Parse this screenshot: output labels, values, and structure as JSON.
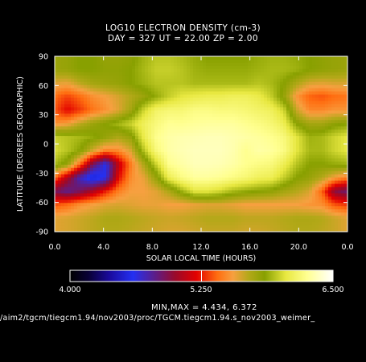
{
  "chart_data": {
    "type": "heatmap",
    "title": "LOG10 ELECTRON DENSITY (cm-3)",
    "subtitle": "DAY = 327  UT = 22.00  ZP =    2.00",
    "xlabel": "SOLAR LOCAL TIME (HOURS)",
    "ylabel": "LATITUDE (DEGREES GEOGRAPHIC)",
    "x_ticks": [
      "0.0",
      "4.0",
      "8.0",
      "12.0",
      "16.0",
      "20.0",
      "0.0"
    ],
    "y_ticks": [
      "90",
      "60",
      "30",
      "0",
      "-30",
      "-60",
      "-90"
    ],
    "xlim": [
      0,
      24
    ],
    "ylim": [
      -90,
      90
    ],
    "colorbar": {
      "min_label": "4.000",
      "mid_label": "5.250",
      "max_label": "6.500",
      "range": [
        4.0,
        6.5
      ]
    },
    "minmax_text": "MIN,MAX =       4.434,     6.372",
    "source_path": "/aim2/tgcm/tiegcm1.94/nov2003/proc/TGCM.tiegcm1.94.s_nov2003_weimer_",
    "grid": [
      [
        5.78,
        5.8,
        5.85,
        5.85,
        5.8,
        5.8,
        5.82,
        5.9,
        5.95,
        5.95,
        5.92,
        5.88,
        5.85,
        5.85,
        5.85,
        5.85,
        5.88,
        5.9,
        5.9,
        5.88,
        5.85,
        5.82,
        5.8,
        5.78
      ],
      [
        5.78,
        5.8,
        5.85,
        5.85,
        5.82,
        5.82,
        5.85,
        5.92,
        5.98,
        5.98,
        5.95,
        5.9,
        5.88,
        5.88,
        5.88,
        5.88,
        5.9,
        5.92,
        5.92,
        5.9,
        5.85,
        5.82,
        5.8,
        5.78
      ],
      [
        5.6,
        5.58,
        5.68,
        5.75,
        5.78,
        5.8,
        5.85,
        5.9,
        5.95,
        5.95,
        5.95,
        5.92,
        5.92,
        5.92,
        5.92,
        5.92,
        5.95,
        5.92,
        5.85,
        5.72,
        5.62,
        5.6,
        5.62,
        5.62
      ],
      [
        5.4,
        5.32,
        5.4,
        5.5,
        5.55,
        5.62,
        5.7,
        5.78,
        5.88,
        5.98,
        6.05,
        6.08,
        6.1,
        6.1,
        6.12,
        6.12,
        6.08,
        5.98,
        5.8,
        5.52,
        5.38,
        5.35,
        5.4,
        5.42
      ],
      [
        5.35,
        5.2,
        5.3,
        5.42,
        5.5,
        5.6,
        5.75,
        6.0,
        6.15,
        6.18,
        6.18,
        6.22,
        6.22,
        6.2,
        6.2,
        6.18,
        6.15,
        6.12,
        6.0,
        5.65,
        5.48,
        5.48,
        5.52,
        5.52
      ],
      [
        5.5,
        5.55,
        5.68,
        5.78,
        5.85,
        5.92,
        6.0,
        6.12,
        6.2,
        6.26,
        6.25,
        6.27,
        6.28,
        6.28,
        6.28,
        6.25,
        6.22,
        6.18,
        6.1,
        5.85,
        5.75,
        5.75,
        5.82,
        5.85
      ],
      [
        5.98,
        5.95,
        5.92,
        5.88,
        5.8,
        5.72,
        5.8,
        6.08,
        6.25,
        6.3,
        6.32,
        6.33,
        6.34,
        6.34,
        6.32,
        6.3,
        6.28,
        6.25,
        6.2,
        6.05,
        5.9,
        5.92,
        6.0,
        6.05
      ],
      [
        6.02,
        5.95,
        5.85,
        5.62,
        5.45,
        5.48,
        5.62,
        5.95,
        6.2,
        6.3,
        6.33,
        6.35,
        6.35,
        6.35,
        6.32,
        6.25,
        6.3,
        6.28,
        6.22,
        6.05,
        5.92,
        5.92,
        6.0,
        6.05
      ],
      [
        5.92,
        5.8,
        5.4,
        4.9,
        4.6,
        5.1,
        5.45,
        5.72,
        6.0,
        6.25,
        6.3,
        6.34,
        6.34,
        6.33,
        6.3,
        6.25,
        6.22,
        6.2,
        6.1,
        5.95,
        5.85,
        5.85,
        5.88,
        5.9
      ],
      [
        5.4,
        5.05,
        4.7,
        4.5,
        4.62,
        5.2,
        5.5,
        5.58,
        5.8,
        6.1,
        6.22,
        6.28,
        6.28,
        6.26,
        6.22,
        6.18,
        6.12,
        6.1,
        5.98,
        5.85,
        5.8,
        5.7,
        5.55,
        5.45
      ],
      [
        4.9,
        4.8,
        4.9,
        5.05,
        5.25,
        5.45,
        5.55,
        5.55,
        5.6,
        5.72,
        5.9,
        6.05,
        6.05,
        6.0,
        5.92,
        5.88,
        5.85,
        5.82,
        5.75,
        5.7,
        5.62,
        5.38,
        4.95,
        4.85
      ],
      [
        5.35,
        5.4,
        5.5,
        5.55,
        5.6,
        5.62,
        5.6,
        5.58,
        5.58,
        5.55,
        5.55,
        5.58,
        5.6,
        5.6,
        5.58,
        5.55,
        5.55,
        5.55,
        5.55,
        5.55,
        5.52,
        5.5,
        5.35,
        5.3
      ],
      [
        5.6,
        5.62,
        5.65,
        5.68,
        5.72,
        5.72,
        5.7,
        5.68,
        5.66,
        5.65,
        5.66,
        5.68,
        5.7,
        5.7,
        5.7,
        5.68,
        5.68,
        5.68,
        5.7,
        5.72,
        5.72,
        5.7,
        5.65,
        5.6
      ],
      [
        5.6,
        5.62,
        5.65,
        5.68,
        5.7,
        5.7,
        5.68,
        5.66,
        5.64,
        5.62,
        5.62,
        5.64,
        5.66,
        5.66,
        5.66,
        5.64,
        5.64,
        5.66,
        5.68,
        5.7,
        5.7,
        5.68,
        5.65,
        5.6
      ]
    ]
  }
}
